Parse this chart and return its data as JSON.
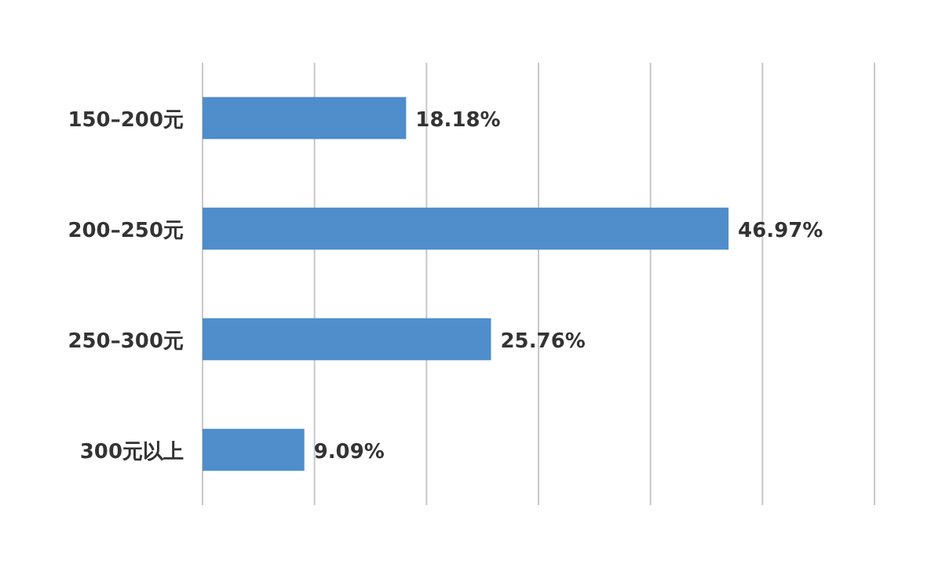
{
  "chart_data": {
    "type": "bar",
    "orientation": "horizontal",
    "categories": [
      "150–200元",
      "200–250元",
      "250–300元",
      "300元以上"
    ],
    "values": [
      18.18,
      46.97,
      25.76,
      9.09
    ],
    "value_labels": [
      "18.18%",
      "46.97%",
      "25.76%",
      "9.09%"
    ],
    "color": "#4f8dcb",
    "xlim": [
      0,
      60
    ],
    "xticks": [
      {
        "value": 0,
        "label": null
      },
      {
        "value": 10,
        "label": null
      },
      {
        "value": 20,
        "label": null
      },
      {
        "value": 30,
        "label": null
      },
      {
        "value": 40,
        "label": null
      },
      {
        "value": 50,
        "label": null
      },
      {
        "value": 60,
        "label": null
      }
    ],
    "grid": "x",
    "tick_labels": "y"
  }
}
